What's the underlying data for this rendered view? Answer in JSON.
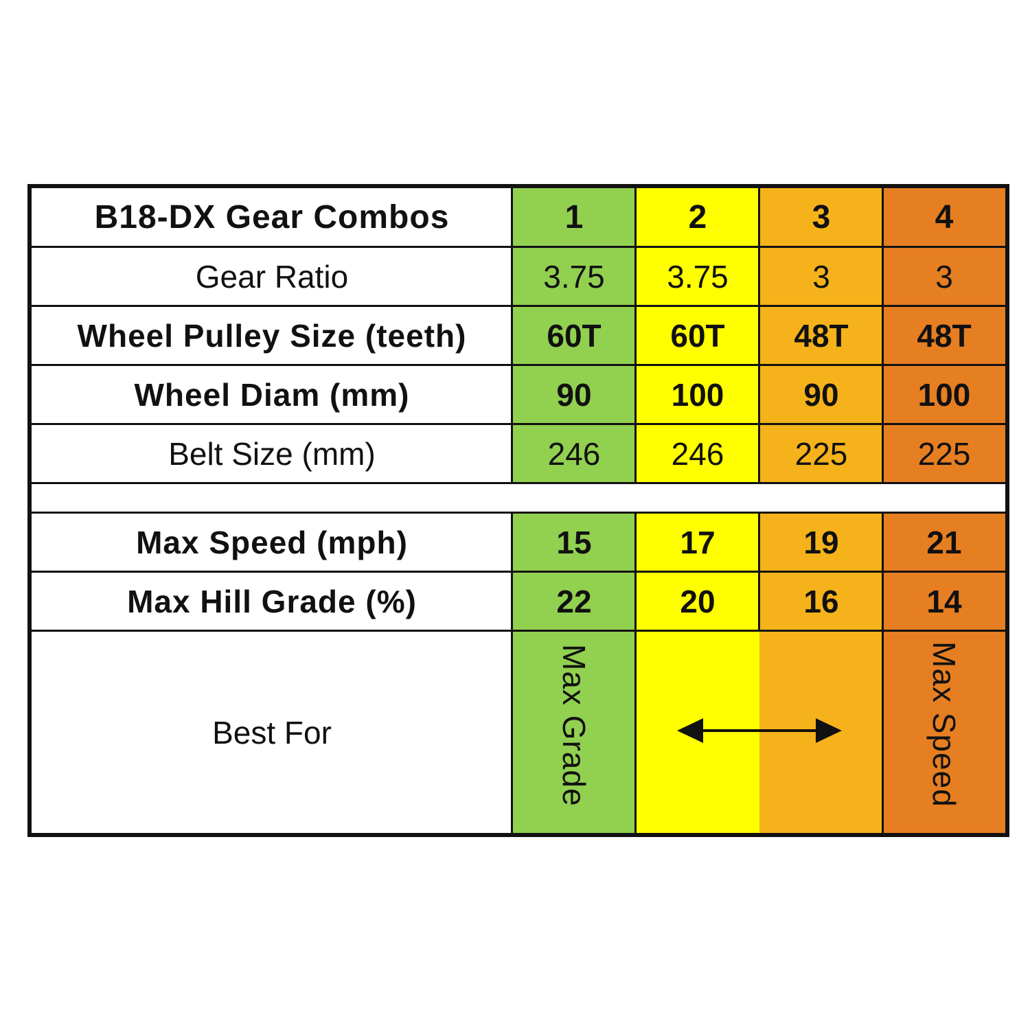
{
  "table": {
    "title": "B18-DX Gear Combos",
    "columns": [
      "1",
      "2",
      "3",
      "4"
    ],
    "column_colors": [
      "#92d050",
      "#ffff00",
      "#f5b21a",
      "#e67e22"
    ],
    "rows": [
      {
        "label": "Gear Ratio",
        "bold": false,
        "values": [
          "3.75",
          "3.75",
          "3",
          "3"
        ]
      },
      {
        "label": "Wheel Pulley Size (teeth)",
        "bold": true,
        "values": [
          "60T",
          "60T",
          "48T",
          "48T"
        ]
      },
      {
        "label": "Wheel Diam (mm)",
        "bold": true,
        "values": [
          "90",
          "100",
          "90",
          "100"
        ]
      },
      {
        "label": "Belt Size (mm)",
        "bold": false,
        "values": [
          "246",
          "246",
          "225",
          "225"
        ]
      }
    ],
    "performance_rows": [
      {
        "label": "Max Speed (mph)",
        "bold": true,
        "values": [
          "15",
          "17",
          "19",
          "21"
        ]
      },
      {
        "label": "Max Hill Grade (%)",
        "bold": true,
        "values": [
          "22",
          "20",
          "16",
          "14"
        ]
      }
    ],
    "best_for": {
      "label": "Best For",
      "left_text": "Max Grade",
      "right_text": "Max Speed",
      "middle_icon": "double-headed-arrow-icon"
    }
  }
}
